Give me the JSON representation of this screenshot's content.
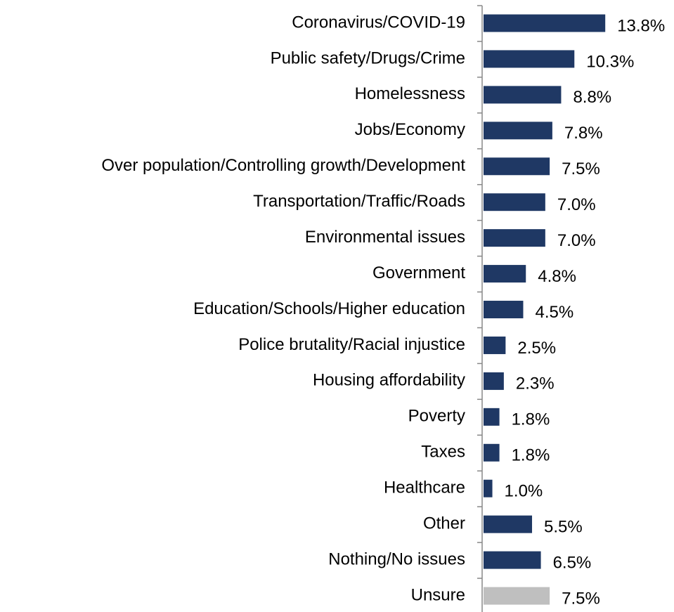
{
  "chart_data": {
    "type": "barh",
    "categories": [
      "Coronavirus/COVID-19",
      "Public safety/Drugs/Crime",
      "Homelessness",
      "Jobs/Economy",
      "Over population/Controlling growth/Development",
      "Transportation/Traffic/Roads",
      "Environmental issues",
      "Government",
      "Education/Schools/Higher education",
      "Police brutality/Racial injustice",
      "Housing affordability",
      "Poverty",
      "Taxes",
      "Healthcare",
      "Other",
      "Nothing/No issues",
      "Unsure"
    ],
    "values": [
      13.8,
      10.3,
      8.8,
      7.8,
      7.5,
      7.0,
      7.0,
      4.8,
      4.5,
      2.5,
      2.3,
      1.8,
      1.8,
      1.0,
      5.5,
      6.5,
      7.5
    ],
    "value_labels": [
      "13.8%",
      "10.3%",
      "8.8%",
      "7.8%",
      "7.5%",
      "7.0%",
      "7.0%",
      "4.8%",
      "4.5%",
      "2.5%",
      "2.3%",
      "1.8%",
      "1.8%",
      "1.0%",
      "5.5%",
      "6.5%",
      "7.5%"
    ],
    "colors": [
      "#1f3864",
      "#1f3864",
      "#1f3864",
      "#1f3864",
      "#1f3864",
      "#1f3864",
      "#1f3864",
      "#1f3864",
      "#1f3864",
      "#1f3864",
      "#1f3864",
      "#1f3864",
      "#1f3864",
      "#1f3864",
      "#1f3864",
      "#1f3864",
      "#bfbfbf"
    ]
  }
}
